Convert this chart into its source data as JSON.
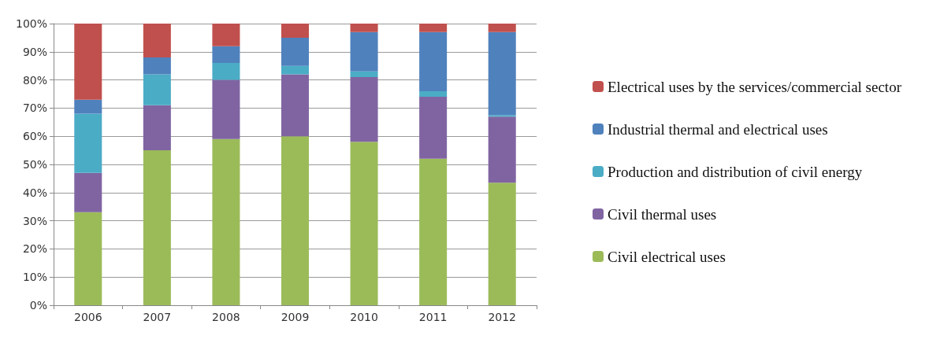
{
  "chart_data": {
    "type": "bar",
    "stacked": true,
    "categories": [
      "2006",
      "2007",
      "2008",
      "2009",
      "2010",
      "2011",
      "2012"
    ],
    "series": [
      {
        "name": "Civil electrical uses",
        "color": "#9bbb59",
        "values": [
          33,
          55,
          59,
          60,
          58,
          52,
          43.5
        ]
      },
      {
        "name": "Civil thermal uses",
        "color": "#8064a2",
        "values": [
          14,
          16,
          21,
          22,
          23,
          22,
          23.5
        ]
      },
      {
        "name": "Production and distribution of civil energy",
        "color": "#4bacc6",
        "values": [
          21,
          11,
          6,
          3,
          2,
          2,
          0.5
        ]
      },
      {
        "name": "Industrial thermal and electrical uses",
        "color": "#4f81bd",
        "values": [
          5,
          6,
          6,
          10,
          14,
          21,
          29.5
        ]
      },
      {
        "name": "Electrical uses by the services/commercial sector",
        "color": "#c0504d",
        "values": [
          27,
          12,
          8,
          5,
          3,
          3,
          3
        ]
      }
    ],
    "ylim": [
      0,
      100
    ],
    "yticks": [
      {
        "value": 0,
        "label": "0%"
      },
      {
        "value": 10,
        "label": "10%"
      },
      {
        "value": 20,
        "label": "20%"
      },
      {
        "value": 30,
        "label": "30%"
      },
      {
        "value": 40,
        "label": "40%"
      },
      {
        "value": 50,
        "label": "50%"
      },
      {
        "value": 60,
        "label": "60%"
      },
      {
        "value": 70,
        "label": "70%"
      },
      {
        "value": 80,
        "label": "80%"
      },
      {
        "value": 90,
        "label": "90%"
      },
      {
        "value": 100,
        "label": "100%"
      }
    ],
    "grid": "y",
    "legend": "right"
  }
}
